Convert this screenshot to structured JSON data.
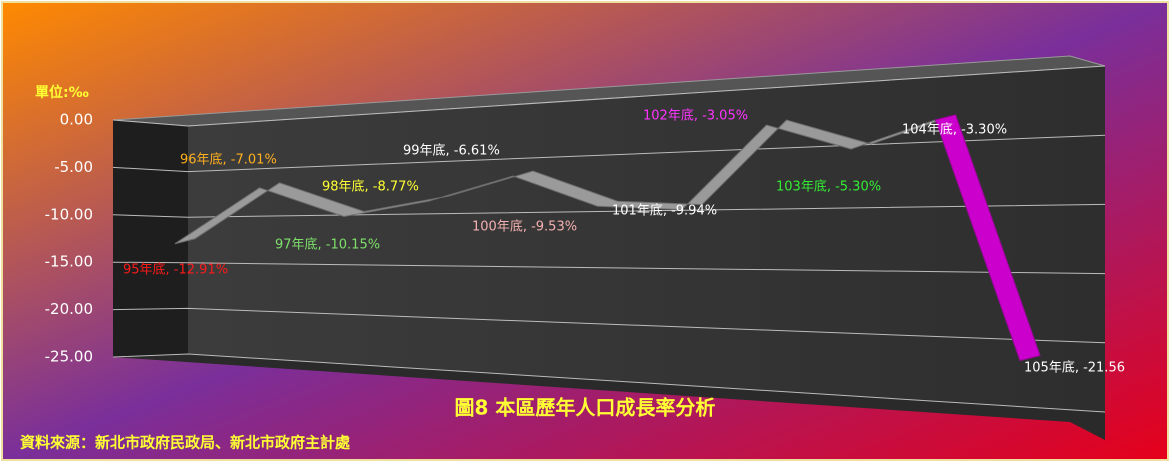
{
  "chart_data": {
    "type": "line3d",
    "title": "圖8  本區歷年人口成長率分析",
    "unit_label": "單位:‰",
    "source": "資料來源：新北市政府民政局、新北市政府主計處",
    "categories": [
      "95年底",
      "96年底",
      "97年底",
      "98年底",
      "99年底",
      "100年底",
      "101年底",
      "102年底",
      "103年底",
      "104年底",
      "105年底"
    ],
    "values": [
      -12.91,
      -7.01,
      -10.15,
      -8.77,
      -6.61,
      -9.53,
      -9.94,
      -3.05,
      -5.3,
      -3.3,
      -21.56
    ],
    "value_labels": [
      "95年底, -12.91%",
      "96年底, -7.01%",
      "97年底, -10.15%",
      "98年底, -8.77%",
      "99年底, -6.61%",
      "100年底, -9.53%",
      "101年底, -9.94%",
      "102年底, -3.05%",
      "103年底, -5.30%",
      "104年底, -3.30%",
      "105年底, -21.56"
    ],
    "label_colors": [
      "#ff1a1a",
      "#ffb020",
      "#7ee06a",
      "#ffff33",
      "#ffffff",
      "#f4b0b0",
      "#ffffff",
      "#ff33ff",
      "#33ee33",
      "#ffffff",
      "#ffffff"
    ],
    "point_colors": [
      "#9a9a9a",
      "#9a9a9a",
      "#9a9a9a",
      "#9a9a9a",
      "#9a9a9a",
      "#9a9a9a",
      "#9a9a9a",
      "#9a9a9a",
      "#9a9a9a",
      "#9a9a9a",
      "#cc00cc"
    ],
    "ylim": [
      -25,
      0
    ],
    "yticks": [
      {
        "value": 0,
        "label": "0.00"
      },
      {
        "value": -5,
        "label": "-5.00"
      },
      {
        "value": -10,
        "label": "-10.00"
      },
      {
        "value": -15,
        "label": "-15.00"
      },
      {
        "value": -20,
        "label": "-20.00"
      },
      {
        "value": -25,
        "label": "-25.00"
      }
    ],
    "grid": true
  }
}
